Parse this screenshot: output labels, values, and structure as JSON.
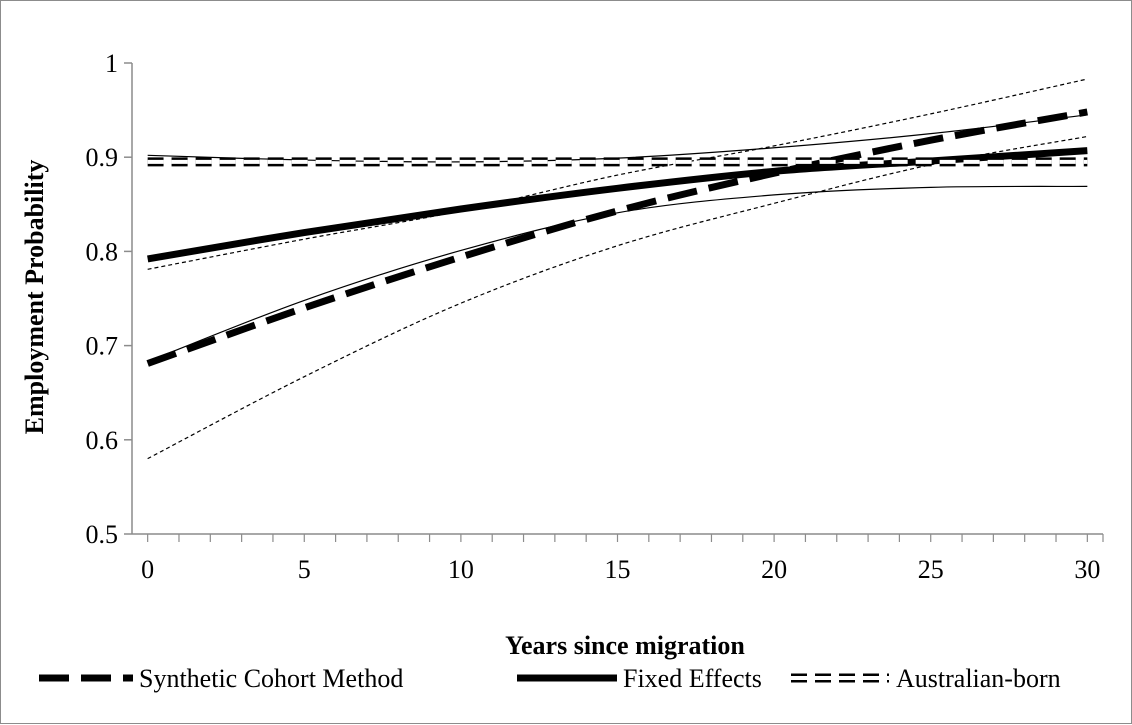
{
  "chart_data": {
    "type": "line",
    "xlabel": "Years since migration",
    "ylabel": "Employment Probability",
    "xlim": [
      -0.5,
      30.5
    ],
    "ylim": [
      0.5,
      1.0
    ],
    "x_ticks": [
      "0",
      "5",
      "10",
      "15",
      "20",
      "25",
      "30"
    ],
    "y_ticks": [
      "0.5",
      "0.6",
      "0.7",
      "0.8",
      "0.9",
      "1"
    ],
    "grid": false,
    "legend_position": "bottom",
    "series": [
      {
        "name": "Synthetic Cohort Method",
        "style": "thick-dashed",
        "color": "#000000",
        "x": [
          0,
          5,
          10,
          15,
          20,
          25,
          30
        ],
        "values": [
          0.681,
          0.74,
          0.794,
          0.843,
          0.883,
          0.918,
          0.948
        ]
      },
      {
        "name": "Fixed Effects",
        "style": "thick-solid",
        "color": "#000000",
        "x": [
          0,
          5,
          10,
          15,
          20,
          25,
          30
        ],
        "values": [
          0.792,
          0.82,
          0.845,
          0.867,
          0.885,
          0.896,
          0.907
        ]
      },
      {
        "name": "Australian-born",
        "style": "double-dashed",
        "color": "#000000",
        "x": [
          0,
          5,
          10,
          15,
          20,
          25,
          30
        ],
        "values": [
          0.895,
          0.895,
          0.895,
          0.895,
          0.895,
          0.895,
          0.895
        ]
      }
    ],
    "confidence_bands": [
      {
        "style": "thin-dotted",
        "x": [
          0,
          5,
          10,
          15,
          20,
          25,
          30
        ],
        "lower": [
          0.58,
          0.667,
          0.745,
          0.806,
          0.851,
          0.892,
          0.922
        ],
        "upper": [
          0.781,
          0.813,
          0.843,
          0.881,
          0.912,
          0.946,
          0.983
        ]
      },
      {
        "style": "thin-solid",
        "x": [
          0,
          5,
          10,
          15,
          20,
          25,
          30
        ],
        "lower": [
          0.683,
          0.748,
          0.801,
          0.841,
          0.86,
          0.868,
          0.869
        ],
        "upper": [
          0.902,
          0.897,
          0.895,
          0.899,
          0.91,
          0.925,
          0.945
        ]
      }
    ]
  }
}
